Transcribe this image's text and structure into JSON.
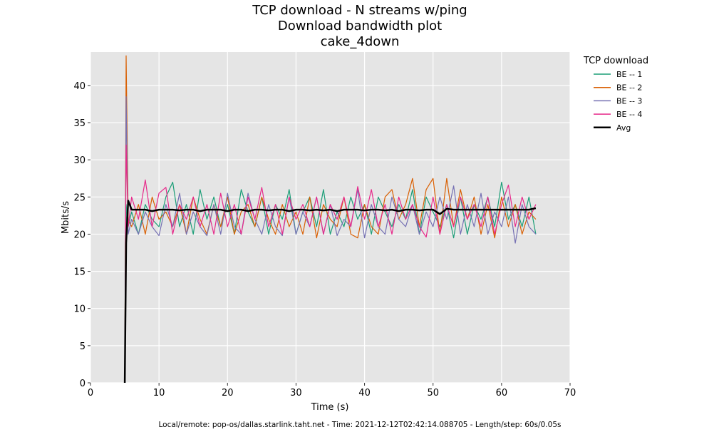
{
  "chart_data": {
    "type": "line",
    "title": [
      "TCP download - N streams w/ping",
      "Download bandwidth plot",
      "cake_4down"
    ],
    "xlabel": "Time (s)",
    "ylabel": "Mbits/s",
    "xlim": [
      0,
      70
    ],
    "ylim": [
      0,
      44.5
    ],
    "xticks": [
      0,
      10,
      20,
      30,
      40,
      50,
      60,
      70
    ],
    "yticks": [
      0,
      5,
      10,
      15,
      20,
      25,
      30,
      35,
      40
    ],
    "grid": true,
    "legend": {
      "title": "TCP download",
      "placement": "outside-right"
    },
    "footer": "Local/remote: pop-os/dallas.starlink.taht.net - Time: 2021-12-12T02:42:14.088705 - Length/step: 60s/0.05s",
    "x": [
      5.0,
      5.2,
      5.5,
      6,
      7,
      8,
      9,
      10,
      11,
      12,
      13,
      14,
      15,
      16,
      17,
      18,
      19,
      20,
      21,
      22,
      23,
      24,
      25,
      26,
      27,
      28,
      29,
      30,
      31,
      32,
      33,
      34,
      35,
      36,
      37,
      38,
      39,
      40,
      41,
      42,
      43,
      44,
      45,
      46,
      47,
      48,
      49,
      50,
      51,
      52,
      53,
      54,
      55,
      56,
      57,
      58,
      59,
      60,
      61,
      62,
      63,
      64,
      65
    ],
    "series": [
      {
        "name": "BE -- 1",
        "color": "#1b9e77",
        "values": [
          0.2,
          24,
          21,
          23,
          20,
          24,
          22,
          21,
          25,
          27,
          21,
          24,
          20,
          26,
          22,
          25,
          21,
          24,
          20,
          26,
          23,
          21,
          25,
          20,
          24,
          22,
          26,
          20,
          23,
          25,
          21,
          26,
          20,
          23,
          21,
          25,
          22,
          24,
          20,
          25,
          23,
          21,
          24,
          22,
          26,
          20,
          25,
          23,
          21,
          24,
          19.5,
          25,
          20,
          24,
          22,
          25,
          21,
          27,
          22,
          24,
          21,
          25,
          20
        ]
      },
      {
        "name": "BE -- 2",
        "color": "#d95f02",
        "values": [
          0.2,
          44,
          22,
          21,
          24,
          20,
          25,
          22,
          23,
          21,
          24,
          20,
          25,
          22,
          20,
          24,
          21,
          25,
          20,
          23,
          24,
          21,
          25,
          22,
          20,
          24,
          21,
          23,
          20,
          25,
          19.5,
          24,
          22,
          21,
          25,
          20,
          19.5,
          24,
          21,
          20,
          25,
          26,
          22,
          24,
          27.5,
          21,
          26,
          27.5,
          20,
          27.5,
          21,
          26,
          22,
          25,
          20,
          24,
          19.5,
          25,
          21,
          24,
          20,
          23,
          22
        ]
      },
      {
        "name": "BE -- 3",
        "color": "#7570b3",
        "values": [
          0.2,
          38.5,
          20,
          22,
          20,
          23,
          21,
          19.8,
          24,
          21,
          25.5,
          20,
          23,
          21,
          19.8,
          24,
          20,
          25.5,
          21,
          20,
          25.5,
          22,
          20,
          24,
          21,
          19.8,
          25,
          20,
          23,
          21,
          25,
          20,
          24,
          19.8,
          22,
          21,
          26,
          19.5,
          24,
          21,
          20,
          25,
          22,
          21,
          24,
          20,
          23,
          21,
          25,
          22,
          26.5,
          20,
          24,
          21,
          25.5,
          20,
          23,
          21,
          25,
          18.8,
          24,
          21,
          20
        ]
      },
      {
        "name": "BE -- 4",
        "color": "#e7298a",
        "values": [
          0.2,
          32,
          21,
          25,
          22,
          27.3,
          21,
          25.5,
          26.3,
          20,
          24,
          22,
          25,
          21,
          24,
          20,
          25.5,
          21,
          24,
          20,
          25,
          22,
          26.3,
          21,
          24,
          20,
          25,
          22,
          24,
          21,
          25,
          20,
          24,
          22,
          25,
          21,
          26.4,
          22,
          26,
          21,
          24,
          20,
          25,
          22,
          24,
          21,
          19.6,
          25,
          20,
          24,
          21,
          25,
          22,
          24,
          21,
          25,
          20,
          24,
          26.6,
          21,
          25,
          22,
          24
        ]
      },
      {
        "name": "Avg",
        "color": "#000000",
        "values": [
          0,
          18.8,
          24.5,
          23.3,
          23.3,
          23.3,
          23.1,
          23.3,
          23.3,
          23.3,
          23.2,
          23.3,
          23.3,
          23.1,
          23.3,
          23.3,
          23.3,
          23.1,
          23.3,
          23.3,
          23.1,
          23.3,
          23.3,
          23.2,
          23.3,
          23.3,
          23.1,
          23.3,
          23.3,
          23.2,
          23.3,
          23.2,
          23.3,
          23.1,
          23.3,
          23.3,
          23.3,
          23.2,
          23.3,
          23.3,
          23.2,
          23.3,
          23.1,
          23.3,
          23.3,
          23.2,
          23.3,
          23.3,
          22.7,
          23.4,
          23.3,
          23.3,
          23.3,
          23.3,
          23.3,
          23.3,
          23.3,
          23.3,
          23.3,
          23.3,
          23.3,
          23.3,
          23.5
        ]
      }
    ]
  }
}
